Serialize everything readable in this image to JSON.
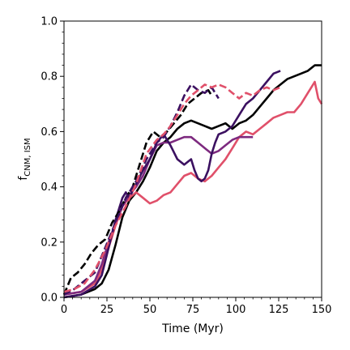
{
  "chart_data": {
    "type": "line",
    "xlabel": "Time (Myr)",
    "ylabel_main": "f",
    "ylabel_sub": "CNM, ISM",
    "xlim": [
      0,
      150
    ],
    "ylim": [
      0,
      1.0
    ],
    "x_ticks": [
      "0",
      "25",
      "50",
      "75",
      "100",
      "125",
      "150"
    ],
    "y_ticks": [
      "0.0",
      "0.2",
      "0.4",
      "0.6",
      "0.8",
      "1.0"
    ],
    "grid": false,
    "legend": "none",
    "series": [
      {
        "color": "#000000",
        "style": "solid",
        "x": [
          0,
          10,
          18,
          22,
          26,
          30,
          34,
          38,
          42,
          46,
          50,
          54,
          58,
          62,
          66,
          70,
          74,
          78,
          82,
          86,
          90,
          94,
          98,
          102,
          106,
          110,
          114,
          118,
          122,
          126,
          130,
          134,
          138,
          142,
          146,
          150
        ],
        "y": [
          0.0,
          0.01,
          0.03,
          0.05,
          0.1,
          0.19,
          0.29,
          0.35,
          0.38,
          0.42,
          0.47,
          0.53,
          0.56,
          0.58,
          0.61,
          0.63,
          0.64,
          0.63,
          0.62,
          0.61,
          0.62,
          0.63,
          0.61,
          0.63,
          0.64,
          0.66,
          0.69,
          0.72,
          0.75,
          0.77,
          0.79,
          0.8,
          0.81,
          0.82,
          0.84,
          0.84
        ]
      },
      {
        "color": "#e0506a",
        "style": "solid",
        "x": [
          0,
          10,
          18,
          22,
          26,
          30,
          34,
          38,
          42,
          46,
          50,
          54,
          58,
          62,
          66,
          70,
          74,
          78,
          82,
          86,
          90,
          94,
          98,
          102,
          106,
          110,
          114,
          118,
          122,
          126,
          130,
          134,
          138,
          142,
          144,
          146,
          148,
          150
        ],
        "y": [
          0.01,
          0.02,
          0.05,
          0.1,
          0.18,
          0.26,
          0.33,
          0.36,
          0.38,
          0.36,
          0.34,
          0.35,
          0.37,
          0.38,
          0.41,
          0.44,
          0.45,
          0.43,
          0.42,
          0.44,
          0.47,
          0.5,
          0.54,
          0.58,
          0.6,
          0.59,
          0.61,
          0.63,
          0.65,
          0.66,
          0.67,
          0.67,
          0.7,
          0.74,
          0.76,
          0.78,
          0.72,
          0.7
        ]
      },
      {
        "color": "#7d2a7f",
        "style": "solid",
        "x": [
          0,
          10,
          18,
          22,
          26,
          30,
          34,
          38,
          42,
          46,
          50,
          54,
          58,
          62,
          66,
          70,
          74,
          78,
          82,
          86,
          90,
          94,
          98,
          102,
          106,
          110
        ],
        "y": [
          0.01,
          0.02,
          0.06,
          0.12,
          0.2,
          0.27,
          0.33,
          0.37,
          0.4,
          0.44,
          0.5,
          0.55,
          0.56,
          0.56,
          0.57,
          0.58,
          0.58,
          0.56,
          0.54,
          0.52,
          0.53,
          0.55,
          0.57,
          0.58,
          0.58,
          0.58
        ]
      },
      {
        "color": "#3b1060",
        "style": "solid",
        "x": [
          0,
          10,
          18,
          22,
          26,
          30,
          34,
          36,
          38,
          42,
          46,
          50,
          54,
          58,
          62,
          66,
          70,
          72,
          74,
          76,
          78,
          80,
          82,
          84,
          86,
          88,
          90,
          94,
          98,
          102,
          106,
          110,
          114,
          118,
          122,
          126
        ],
        "y": [
          0.0,
          0.01,
          0.04,
          0.08,
          0.18,
          0.28,
          0.36,
          0.38,
          0.36,
          0.41,
          0.46,
          0.5,
          0.56,
          0.59,
          0.55,
          0.5,
          0.48,
          0.49,
          0.5,
          0.46,
          0.43,
          0.42,
          0.43,
          0.46,
          0.52,
          0.56,
          0.59,
          0.6,
          0.62,
          0.66,
          0.7,
          0.72,
          0.75,
          0.78,
          0.81,
          0.82
        ]
      },
      {
        "color": "#000000",
        "style": "dashed",
        "x": [
          0,
          4,
          8,
          12,
          16,
          20,
          24,
          28,
          32,
          36,
          40,
          44,
          48,
          52,
          56,
          60,
          64,
          68,
          72,
          76,
          80,
          84,
          86
        ],
        "y": [
          0.01,
          0.07,
          0.09,
          0.12,
          0.16,
          0.19,
          0.21,
          0.27,
          0.31,
          0.36,
          0.4,
          0.48,
          0.56,
          0.6,
          0.58,
          0.6,
          0.63,
          0.66,
          0.7,
          0.72,
          0.74,
          0.75,
          0.73
        ]
      },
      {
        "color": "#3b1060",
        "style": "dashed",
        "x": [
          0,
          6,
          12,
          18,
          24,
          30,
          36,
          42,
          48,
          54,
          58,
          62,
          66,
          70,
          74,
          78,
          82,
          86,
          90
        ],
        "y": [
          0.01,
          0.03,
          0.06,
          0.09,
          0.18,
          0.27,
          0.36,
          0.42,
          0.5,
          0.56,
          0.58,
          0.62,
          0.67,
          0.73,
          0.77,
          0.75,
          0.74,
          0.76,
          0.72
        ]
      },
      {
        "color": "#e0506a",
        "style": "dashed",
        "x": [
          0,
          6,
          12,
          18,
          24,
          30,
          36,
          42,
          48,
          54,
          58,
          62,
          66,
          70,
          74,
          78,
          82,
          86,
          90,
          94,
          98,
          102,
          106,
          110,
          114,
          118,
          122,
          126
        ],
        "y": [
          0.02,
          0.03,
          0.05,
          0.1,
          0.17,
          0.26,
          0.33,
          0.41,
          0.52,
          0.57,
          0.59,
          0.62,
          0.66,
          0.7,
          0.73,
          0.75,
          0.77,
          0.76,
          0.77,
          0.76,
          0.74,
          0.72,
          0.74,
          0.73,
          0.75,
          0.76,
          0.75,
          0.76
        ]
      }
    ]
  }
}
